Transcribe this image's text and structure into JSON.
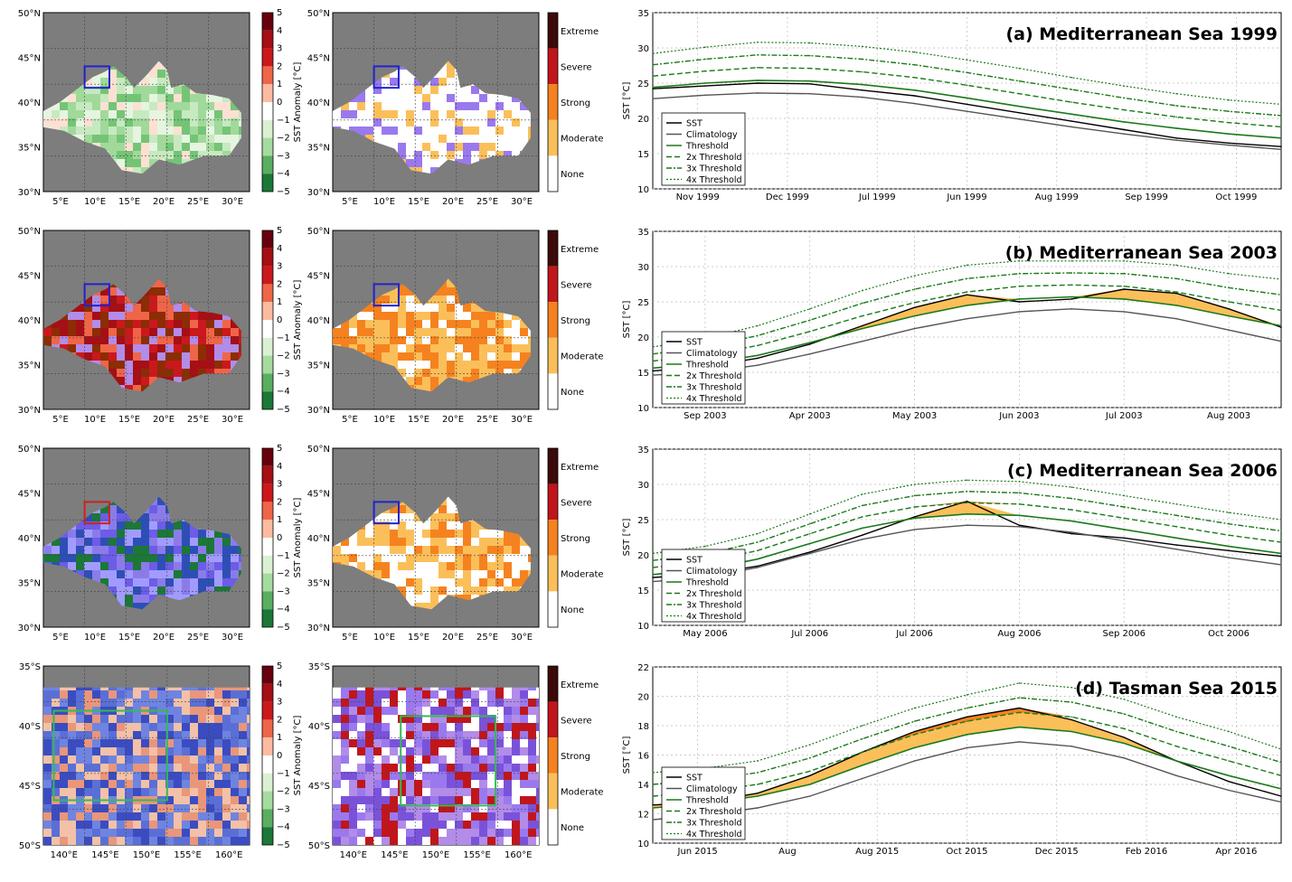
{
  "anomaly_cbar_ticks": [
    "5",
    "4",
    "3",
    "2",
    "1",
    "0",
    "−1",
    "−2",
    "−3",
    "−4",
    "−5"
  ],
  "anomaly_label": "SST Anomaly [°C]",
  "category_labels": [
    "Extreme",
    "Severe",
    "Strong",
    "Moderate",
    "None"
  ],
  "colors": {
    "land": "#7d7d7d",
    "sst": "#000000",
    "climatology": "#555555",
    "threshold": "#1a7a1a",
    "moderate": "#fbbf5a",
    "strong": "#f5821f",
    "severe": "#c0161b",
    "extreme": "#3d0a0a",
    "cold": "#9a79ee",
    "box_blue": "#2222cc",
    "box_red": "#cc2222",
    "box_green": "#33bb55"
  },
  "maps": {
    "med": {
      "lat_labels": [
        "50°N",
        "45°N",
        "40°N",
        "35°N",
        "30°N"
      ],
      "lon_labels": [
        "5°E",
        "10°E",
        "15°E",
        "20°E",
        "25°E",
        "30°E"
      ]
    },
    "tasman": {
      "lat_labels": [
        "35°S",
        "40°S",
        "45°S",
        "50°S"
      ],
      "lon_labels": [
        "140°E",
        "145°E",
        "150°E",
        "155°E",
        "160°E"
      ]
    }
  },
  "chart_data": [
    {
      "type": "line",
      "title": "(a) Mediterranean Sea 1999",
      "ylabel": "SST [°C]",
      "ylim": [
        10,
        35
      ],
      "yticks": [
        "35",
        "30",
        "25",
        "20",
        "15",
        "10"
      ],
      "xticks": [
        "Nov 1999",
        "Dec 1999",
        "Jul 1999",
        "Jun 1999",
        "Aug 1999",
        "Sep 1999",
        "Oct 1999"
      ],
      "legend": [
        "SST",
        "Climatology",
        "Threshold",
        "2x Threshold",
        "3x Threshold",
        "4x Threshold"
      ],
      "x": [
        0,
        1,
        2,
        3,
        4,
        5,
        6,
        7,
        8,
        9,
        10,
        11,
        12
      ],
      "series": [
        {
          "name": "SST",
          "values": [
            24.2,
            24.6,
            25.0,
            24.9,
            24.0,
            23.2,
            22.0,
            20.8,
            19.6,
            18.4,
            17.2,
            16.5,
            16.0
          ]
        },
        {
          "name": "Climatology",
          "values": [
            22.8,
            23.3,
            23.6,
            23.5,
            23.0,
            22.1,
            21.0,
            19.9,
            18.8,
            17.8,
            16.9,
            16.2,
            15.6
          ]
        },
        {
          "name": "Threshold",
          "values": [
            24.4,
            25.0,
            25.4,
            25.3,
            24.8,
            24.0,
            22.9,
            21.7,
            20.6,
            19.5,
            18.6,
            17.8,
            17.2
          ]
        },
        {
          "name": "2x Threshold",
          "values": [
            26.0,
            26.7,
            27.2,
            27.1,
            26.6,
            25.8,
            24.7,
            23.5,
            22.3,
            21.2,
            20.2,
            19.4,
            18.8
          ]
        },
        {
          "name": "3x Threshold",
          "values": [
            27.6,
            28.4,
            29.0,
            28.9,
            28.4,
            27.6,
            26.5,
            25.3,
            24.1,
            22.9,
            21.8,
            21.0,
            20.4
          ]
        },
        {
          "name": "4x Threshold",
          "values": [
            29.2,
            30.1,
            30.8,
            30.7,
            30.2,
            29.4,
            28.3,
            27.1,
            25.8,
            24.6,
            23.5,
            22.6,
            22.0
          ]
        }
      ]
    },
    {
      "type": "line",
      "title": "(b) Mediterranean Sea 2003",
      "ylabel": "SST [°C]",
      "ylim": [
        10,
        35
      ],
      "yticks": [
        "35",
        "30",
        "25",
        "20",
        "15",
        "10"
      ],
      "xticks": [
        "Sep 2003",
        "Apr 2003",
        "May 2003",
        "Jun 2003",
        "Jul 2003",
        "Aug 2003"
      ],
      "legend": [
        "SST",
        "Climatology",
        "Threshold",
        "2x Threshold",
        "3x Threshold",
        "4x Threshold"
      ],
      "x": [
        0,
        1,
        2,
        3,
        4,
        5,
        6,
        7,
        8,
        9,
        10,
        11,
        12
      ],
      "series": [
        {
          "name": "SST",
          "values": [
            15.2,
            15.8,
            17.0,
            19.0,
            21.6,
            24.2,
            26.0,
            25.0,
            25.4,
            26.8,
            26.2,
            24.0,
            21.4
          ]
        },
        {
          "name": "Climatology",
          "values": [
            14.6,
            15.0,
            16.0,
            17.6,
            19.4,
            21.2,
            22.6,
            23.6,
            24.0,
            23.6,
            22.6,
            21.0,
            19.4
          ]
        },
        {
          "name": "Threshold",
          "values": [
            15.6,
            16.2,
            17.4,
            19.2,
            21.2,
            23.0,
            24.5,
            25.4,
            25.7,
            25.4,
            24.5,
            23.0,
            21.6
          ]
        },
        {
          "name": "2x Threshold",
          "values": [
            16.6,
            17.4,
            18.8,
            20.8,
            23.0,
            24.9,
            26.4,
            27.2,
            27.4,
            27.2,
            26.4,
            25.0,
            23.8
          ]
        },
        {
          "name": "3x Threshold",
          "values": [
            17.6,
            18.6,
            20.2,
            22.4,
            24.8,
            26.8,
            28.3,
            29.0,
            29.1,
            29.0,
            28.3,
            27.0,
            26.0
          ]
        },
        {
          "name": "4x Threshold",
          "values": [
            18.6,
            19.8,
            21.6,
            24.0,
            26.6,
            28.7,
            30.2,
            30.8,
            30.8,
            30.8,
            30.2,
            29.0,
            28.2
          ]
        }
      ]
    },
    {
      "type": "line",
      "title": "(c) Mediterranean Sea 2006",
      "ylabel": "SST [°C]",
      "ylim": [
        10,
        35
      ],
      "yticks": [
        "35",
        "30",
        "25",
        "20",
        "15",
        "10"
      ],
      "xticks": [
        "May 2006",
        "Jul 2006",
        "Jul 2006",
        "Aug 2006",
        "Sep 2006",
        "Oct 2006"
      ],
      "legend": [
        "SST",
        "Climatology",
        "Threshold",
        "2x Threshold",
        "3x Threshold",
        "4x Threshold"
      ],
      "x": [
        0,
        1,
        2,
        3,
        4,
        5,
        6,
        7,
        8,
        9,
        10,
        11,
        12
      ],
      "series": [
        {
          "name": "SST",
          "values": [
            16.8,
            17.2,
            18.4,
            20.4,
            22.8,
            25.4,
            27.6,
            24.2,
            23.0,
            22.4,
            21.4,
            20.6,
            19.8
          ]
        },
        {
          "name": "Climatology",
          "values": [
            16.2,
            16.8,
            18.2,
            20.2,
            22.2,
            23.6,
            24.2,
            24.0,
            23.2,
            22.0,
            20.8,
            19.6,
            18.6
          ]
        },
        {
          "name": "Threshold",
          "values": [
            17.2,
            17.9,
            19.4,
            21.6,
            23.8,
            25.2,
            25.8,
            25.6,
            24.8,
            23.6,
            22.4,
            21.2,
            20.2
          ]
        },
        {
          "name": "2x Threshold",
          "values": [
            18.2,
            19.0,
            20.6,
            23.0,
            25.4,
            26.8,
            27.4,
            27.2,
            26.4,
            25.2,
            24.0,
            22.8,
            21.8
          ]
        },
        {
          "name": "3x Threshold",
          "values": [
            19.2,
            20.1,
            21.8,
            24.4,
            27.0,
            28.4,
            29.0,
            28.8,
            28.0,
            26.8,
            25.6,
            24.4,
            23.4
          ]
        },
        {
          "name": "4x Threshold",
          "values": [
            20.2,
            21.2,
            23.0,
            25.8,
            28.6,
            30.0,
            30.6,
            30.4,
            29.6,
            28.4,
            27.2,
            26.0,
            25.0
          ]
        }
      ]
    },
    {
      "type": "line",
      "title": "(d) Tasman Sea 2015",
      "ylabel": "SST [°C]",
      "ylim": [
        10,
        22
      ],
      "yticks": [
        "22",
        "20",
        "18",
        "16",
        "14",
        "12",
        "10"
      ],
      "xticks": [
        "Jun 2015",
        "Aug",
        "Aug 2015",
        "Oct 2015",
        "Dec 2015",
        "Feb 2016",
        "Apr 2016"
      ],
      "legend": [
        "SST",
        "Climatology",
        "Threshold",
        "2x Threshold",
        "3x Threshold",
        "4x Threshold"
      ],
      "x": [
        0,
        1,
        2,
        3,
        4,
        5,
        6,
        7,
        8,
        9,
        10,
        11,
        12
      ],
      "series": [
        {
          "name": "SST",
          "values": [
            12.6,
            12.8,
            13.4,
            14.6,
            16.2,
            17.6,
            18.6,
            19.2,
            18.4,
            17.2,
            15.6,
            14.2,
            13.2
          ]
        },
        {
          "name": "Climatology",
          "values": [
            11.6,
            11.9,
            12.4,
            13.2,
            14.4,
            15.6,
            16.5,
            16.9,
            16.6,
            15.8,
            14.6,
            13.6,
            12.8
          ]
        },
        {
          "name": "Threshold",
          "values": [
            12.4,
            12.7,
            13.2,
            14.0,
            15.3,
            16.5,
            17.4,
            17.9,
            17.6,
            16.8,
            15.6,
            14.6,
            13.7
          ]
        },
        {
          "name": "2x Threshold",
          "values": [
            13.2,
            13.5,
            14.0,
            14.9,
            16.2,
            17.4,
            18.3,
            18.9,
            18.6,
            17.8,
            16.6,
            15.6,
            14.6
          ]
        },
        {
          "name": "3x Threshold",
          "values": [
            14.0,
            14.3,
            14.8,
            15.8,
            17.1,
            18.3,
            19.2,
            19.9,
            19.6,
            18.8,
            17.6,
            16.6,
            15.5
          ]
        },
        {
          "name": "4x Threshold",
          "values": [
            14.8,
            15.1,
            15.6,
            16.7,
            18.0,
            19.2,
            20.1,
            20.9,
            20.6,
            19.8,
            18.6,
            17.6,
            16.4
          ]
        }
      ]
    }
  ]
}
